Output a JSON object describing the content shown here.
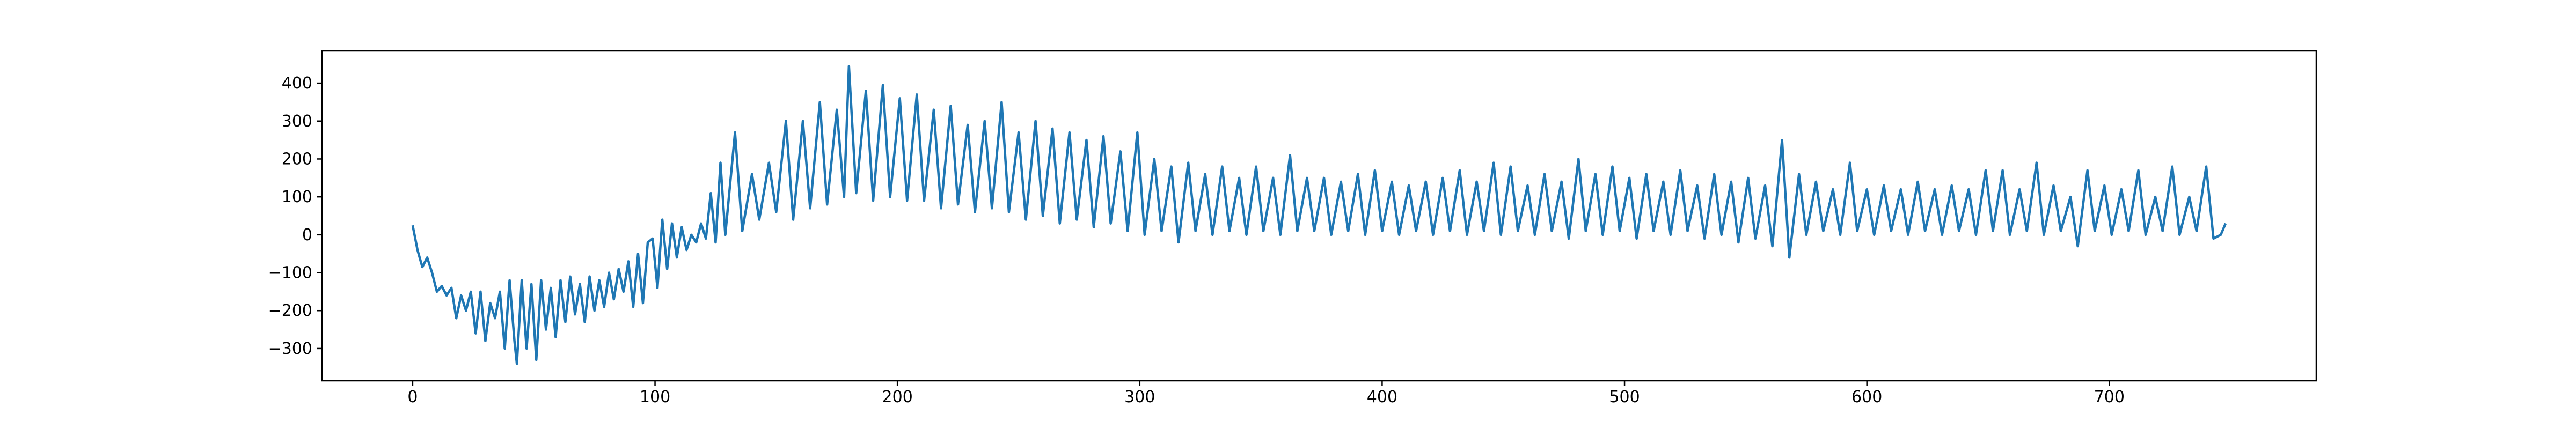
{
  "chart_data": {
    "type": "line",
    "x": [
      0,
      2,
      4,
      6,
      8,
      10,
      12,
      14,
      16,
      18,
      20,
      22,
      24,
      26,
      28,
      30,
      32,
      34,
      36,
      38,
      40,
      42,
      43,
      45,
      47,
      49,
      51,
      53,
      55,
      57,
      59,
      61,
      63,
      65,
      67,
      69,
      71,
      73,
      75,
      77,
      79,
      81,
      83,
      85,
      87,
      89,
      91,
      93,
      95,
      97,
      99,
      101,
      103,
      105,
      107,
      109,
      111,
      113,
      115,
      117,
      119,
      121,
      123,
      125,
      127,
      129,
      133,
      136,
      140,
      143,
      147,
      150,
      154,
      157,
      161,
      164,
      168,
      171,
      175,
      178,
      180,
      183,
      187,
      190,
      194,
      197,
      201,
      204,
      208,
      211,
      215,
      218,
      222,
      225,
      229,
      232,
      236,
      239,
      243,
      246,
      250,
      253,
      257,
      260,
      264,
      267,
      271,
      274,
      278,
      281,
      285,
      288,
      292,
      295,
      299,
      302,
      306,
      309,
      313,
      316,
      320,
      323,
      327,
      330,
      334,
      337,
      341,
      344,
      348,
      351,
      355,
      358,
      362,
      365,
      369,
      372,
      376,
      379,
      383,
      386,
      390,
      393,
      397,
      400,
      404,
      407,
      411,
      414,
      418,
      421,
      425,
      428,
      432,
      435,
      439,
      442,
      446,
      449,
      453,
      456,
      460,
      463,
      467,
      470,
      474,
      477,
      481,
      484,
      488,
      491,
      495,
      498,
      502,
      505,
      509,
      512,
      516,
      519,
      523,
      526,
      530,
      533,
      537,
      540,
      544,
      547,
      551,
      554,
      558,
      561,
      565,
      568,
      572,
      575,
      579,
      582,
      586,
      589,
      593,
      596,
      600,
      603,
      607,
      610,
      614,
      617,
      621,
      624,
      628,
      631,
      635,
      638,
      642,
      645,
      649,
      652,
      656,
      659,
      663,
      666,
      670,
      673,
      677,
      680,
      684,
      687,
      691,
      694,
      698,
      701,
      705,
      708,
      712,
      715,
      719,
      722,
      726,
      729,
      733,
      736,
      740,
      743,
      746,
      748
    ],
    "series": [
      {
        "color": "#1f77b4",
        "values": [
          25,
          -40,
          -85,
          -60,
          -100,
          -150,
          -135,
          -160,
          -140,
          -220,
          -160,
          -200,
          -150,
          -260,
          -150,
          -280,
          -180,
          -220,
          -150,
          -300,
          -120,
          -280,
          -340,
          -120,
          -300,
          -130,
          -330,
          -120,
          -250,
          -140,
          -270,
          -120,
          -230,
          -110,
          -210,
          -130,
          -230,
          -110,
          -200,
          -120,
          -190,
          -100,
          -170,
          -90,
          -150,
          -70,
          -190,
          -50,
          -180,
          -20,
          -10,
          -140,
          40,
          -90,
          30,
          -60,
          20,
          -40,
          0,
          -20,
          30,
          -10,
          110,
          -20,
          190,
          0,
          270,
          10,
          160,
          40,
          190,
          60,
          300,
          40,
          300,
          70,
          350,
          80,
          330,
          100,
          445,
          110,
          380,
          90,
          395,
          100,
          360,
          90,
          370,
          90,
          330,
          70,
          340,
          80,
          290,
          60,
          300,
          70,
          350,
          60,
          270,
          40,
          300,
          50,
          280,
          30,
          270,
          40,
          250,
          20,
          260,
          30,
          220,
          10,
          270,
          0,
          200,
          10,
          180,
          -20,
          190,
          10,
          160,
          0,
          180,
          10,
          150,
          0,
          180,
          10,
          150,
          0,
          210,
          10,
          150,
          10,
          150,
          0,
          140,
          10,
          160,
          0,
          170,
          10,
          140,
          0,
          130,
          10,
          140,
          0,
          150,
          10,
          170,
          0,
          140,
          10,
          190,
          0,
          180,
          10,
          130,
          0,
          160,
          10,
          140,
          -10,
          200,
          10,
          160,
          0,
          180,
          10,
          150,
          -10,
          160,
          10,
          140,
          0,
          170,
          10,
          130,
          -10,
          160,
          0,
          140,
          -20,
          150,
          -10,
          130,
          -30,
          250,
          -60,
          160,
          0,
          140,
          10,
          120,
          0,
          190,
          10,
          120,
          0,
          130,
          10,
          120,
          0,
          140,
          10,
          120,
          0,
          130,
          10,
          120,
          0,
          170,
          10,
          170,
          0,
          120,
          10,
          190,
          0,
          130,
          10,
          100,
          -30,
          170,
          10,
          130,
          0,
          120,
          10,
          170,
          0,
          100,
          10,
          180,
          0,
          100,
          10,
          180,
          -10,
          0,
          30
        ]
      }
    ],
    "xlim": [
      -37.4,
      785.4
    ],
    "ylim": [
      -385,
      485
    ],
    "xticks": [
      0,
      100,
      200,
      300,
      400,
      500,
      600,
      700
    ],
    "yticks": [
      {
        "value": -300,
        "label": "−300"
      },
      {
        "value": -200,
        "label": "−200"
      },
      {
        "value": -100,
        "label": "−100"
      },
      0,
      100,
      200,
      300,
      400
    ]
  }
}
